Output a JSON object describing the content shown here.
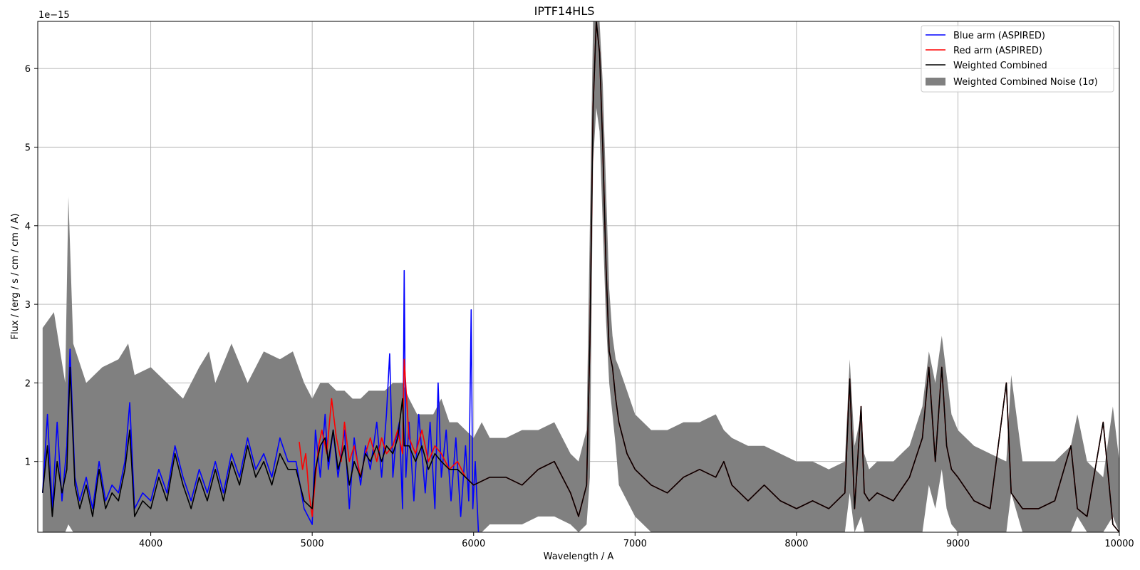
{
  "chart_data": {
    "type": "line",
    "title": "IPTF14HLS",
    "xlabel": "Wavelength / A",
    "ylabel": "Flux / (erg / s / cm / cm / A)",
    "y_offset_label": "1e−15",
    "xlim": [
      3300,
      10000
    ],
    "ylim": [
      0.1,
      6.6
    ],
    "y_scale_exponent": -15,
    "grid": true,
    "legend_position": "top-right",
    "x_ticks": [
      "4000",
      "5000",
      "6000",
      "7000",
      "8000",
      "9000",
      "10000"
    ],
    "y_ticks": [
      "1",
      "2",
      "3",
      "4",
      "5",
      "6"
    ],
    "x_tick_values": [
      4000,
      5000,
      6000,
      7000,
      8000,
      9000,
      10000
    ],
    "y_tick_values": [
      1,
      2,
      3,
      4,
      5,
      6
    ],
    "series": [
      {
        "name": "Weighted Combined Noise (1σ)",
        "kind": "band",
        "color": "#808080",
        "x": [
          3330,
          3400,
          3470,
          3490,
          3520,
          3600,
          3700,
          3800,
          3860,
          3900,
          4000,
          4100,
          4200,
          4300,
          4360,
          4400,
          4500,
          4600,
          4700,
          4800,
          4880,
          4950,
          5000,
          5050,
          5100,
          5150,
          5200,
          5250,
          5300,
          5350,
          5400,
          5450,
          5500,
          5560,
          5600,
          5650,
          5700,
          5750,
          5800,
          5850,
          5900,
          5950,
          6000,
          6050,
          6100,
          6200,
          6300,
          6400,
          6500,
          6600,
          6650,
          6700,
          6720,
          6740,
          6760,
          6780,
          6800,
          6820,
          6840,
          6860,
          6880,
          6900,
          6950,
          7000,
          7100,
          7200,
          7300,
          7400,
          7500,
          7550,
          7600,
          7700,
          7800,
          7900,
          8000,
          8100,
          8200,
          8300,
          8330,
          8360,
          8400,
          8420,
          8450,
          8500,
          8600,
          8700,
          8780,
          8820,
          8860,
          8900,
          8930,
          8960,
          9000,
          9100,
          9200,
          9300,
          9330,
          9400,
          9500,
          9600,
          9700,
          9740,
          9800,
          9900,
          9960,
          10000
        ],
        "upper": [
          2.7,
          2.9,
          2.0,
          4.37,
          2.5,
          2.0,
          2.2,
          2.3,
          2.5,
          2.1,
          2.2,
          2.0,
          1.8,
          2.2,
          2.4,
          2.0,
          2.5,
          2.0,
          2.4,
          2.3,
          2.4,
          2.0,
          1.8,
          2.0,
          2.0,
          1.9,
          1.9,
          1.8,
          1.8,
          1.9,
          1.9,
          1.9,
          2.0,
          2.0,
          1.8,
          1.6,
          1.6,
          1.6,
          1.8,
          1.5,
          1.5,
          1.4,
          1.3,
          1.5,
          1.3,
          1.3,
          1.4,
          1.4,
          1.5,
          1.1,
          1.0,
          1.4,
          4.0,
          6.6,
          6.6,
          6.6,
          5.8,
          4.5,
          3.2,
          2.6,
          2.3,
          2.2,
          1.9,
          1.6,
          1.4,
          1.4,
          1.5,
          1.5,
          1.6,
          1.4,
          1.3,
          1.2,
          1.2,
          1.1,
          1.0,
          1.0,
          0.9,
          1.0,
          2.3,
          1.2,
          1.6,
          1.1,
          0.9,
          1.0,
          1.0,
          1.2,
          1.7,
          2.4,
          2.0,
          2.6,
          2.1,
          1.6,
          1.4,
          1.2,
          1.1,
          1.0,
          2.1,
          1.0,
          1.0,
          1.0,
          1.2,
          1.6,
          1.0,
          0.8,
          1.7,
          1.0
        ],
        "lower": [
          0.1,
          0.1,
          0.1,
          0.2,
          0.1,
          0.1,
          0.1,
          0.1,
          0.1,
          0.1,
          0.1,
          0.1,
          0.1,
          0.1,
          0.1,
          0.1,
          0.1,
          0.1,
          0.1,
          0.1,
          0.1,
          0.1,
          0.1,
          0.1,
          0.1,
          0.1,
          0.1,
          0.1,
          0.1,
          0.1,
          0.1,
          0.1,
          0.1,
          0.1,
          0.1,
          0.1,
          0.1,
          0.1,
          0.1,
          0.1,
          0.1,
          0.1,
          0.1,
          0.1,
          0.2,
          0.2,
          0.2,
          0.3,
          0.3,
          0.2,
          0.1,
          0.2,
          0.8,
          4.8,
          5.5,
          5.2,
          4.0,
          2.8,
          2.0,
          1.6,
          1.2,
          0.7,
          0.5,
          0.3,
          0.1,
          0.1,
          0.1,
          0.1,
          0.1,
          0.1,
          0.1,
          0.1,
          0.1,
          0.1,
          0.1,
          0.1,
          0.1,
          0.1,
          0.6,
          0.1,
          0.3,
          0.1,
          0.1,
          0.1,
          0.1,
          0.1,
          0.1,
          0.7,
          0.4,
          0.9,
          0.4,
          0.2,
          0.1,
          0.1,
          0.1,
          0.1,
          0.6,
          0.1,
          0.1,
          0.1,
          0.1,
          0.3,
          0.1,
          0.1,
          0.3,
          0.1
        ]
      },
      {
        "name": "Blue arm (ASPIRED)",
        "kind": "line",
        "color": "#0000ff",
        "x": [
          3330,
          3360,
          3390,
          3420,
          3450,
          3480,
          3500,
          3530,
          3560,
          3600,
          3640,
          3680,
          3720,
          3760,
          3800,
          3840,
          3870,
          3900,
          3950,
          4000,
          4050,
          4100,
          4150,
          4200,
          4250,
          4300,
          4350,
          4400,
          4450,
          4500,
          4550,
          4600,
          4650,
          4700,
          4750,
          4800,
          4850,
          4900,
          4950,
          5000,
          5020,
          5050,
          5080,
          5100,
          5130,
          5160,
          5200,
          5230,
          5260,
          5300,
          5330,
          5360,
          5400,
          5430,
          5460,
          5480,
          5500,
          5520,
          5540,
          5560,
          5570,
          5580,
          5600,
          5630,
          5660,
          5700,
          5730,
          5760,
          5780,
          5800,
          5830,
          5860,
          5890,
          5920,
          5950,
          5970,
          5985,
          5995,
          6010,
          6030
        ],
        "y": [
          0.6,
          1.6,
          0.4,
          1.5,
          0.5,
          1.2,
          2.43,
          0.8,
          0.5,
          0.8,
          0.4,
          1.0,
          0.5,
          0.7,
          0.6,
          1.0,
          1.75,
          0.4,
          0.6,
          0.5,
          0.9,
          0.6,
          1.2,
          0.8,
          0.5,
          0.9,
          0.6,
          1.0,
          0.6,
          1.1,
          0.8,
          1.3,
          0.9,
          1.1,
          0.8,
          1.3,
          1.0,
          1.0,
          0.4,
          0.2,
          1.4,
          0.8,
          1.6,
          0.9,
          1.4,
          0.8,
          1.4,
          0.4,
          1.3,
          0.7,
          1.2,
          0.9,
          1.5,
          0.8,
          1.6,
          2.37,
          0.8,
          1.3,
          1.5,
          0.4,
          3.43,
          0.8,
          1.5,
          0.5,
          1.6,
          0.6,
          1.5,
          0.4,
          2.0,
          0.8,
          1.4,
          0.5,
          1.3,
          0.3,
          1.2,
          0.5,
          2.93,
          0.4,
          1.0,
          0.1
        ]
      },
      {
        "name": "Red arm (ASPIRED)",
        "kind": "line",
        "color": "#ff0000",
        "x": [
          4920,
          4940,
          4960,
          4980,
          5000,
          5020,
          5040,
          5060,
          5090,
          5120,
          5150,
          5180,
          5200,
          5230,
          5260,
          5300,
          5330,
          5360,
          5400,
          5430,
          5460,
          5500,
          5530,
          5560,
          5570,
          5600,
          5640,
          5680,
          5720,
          5760,
          5800,
          5850,
          5900,
          5950,
          6000,
          6100,
          6200,
          6300,
          6400,
          6500,
          6600,
          6650,
          6700,
          6720,
          6740,
          6760,
          6780,
          6800,
          6820,
          6840,
          6860,
          6880,
          6900,
          6950,
          7000,
          7100,
          7200,
          7300,
          7400,
          7500,
          7550,
          7600,
          7700,
          7800,
          7900,
          8000,
          8100,
          8200,
          8300,
          8330,
          8360,
          8400,
          8420,
          8450,
          8500,
          8600,
          8700,
          8780,
          8820,
          8860,
          8900,
          8930,
          8960,
          9000,
          9100,
          9200,
          9300,
          9330,
          9400,
          9500,
          9600,
          9700,
          9740,
          9800,
          9900,
          9960,
          10000
        ],
        "y": [
          1.25,
          0.9,
          1.1,
          0.6,
          0.3,
          0.8,
          1.2,
          1.4,
          1.1,
          1.8,
          1.3,
          1.0,
          1.5,
          1.0,
          1.2,
          0.8,
          1.1,
          1.3,
          1.0,
          1.3,
          1.1,
          1.2,
          1.4,
          1.1,
          2.3,
          1.3,
          1.1,
          1.4,
          1.0,
          1.2,
          1.1,
          0.9,
          1.0,
          0.8,
          0.7,
          0.8,
          0.8,
          0.7,
          0.9,
          1.0,
          0.6,
          0.3,
          0.7,
          2.5,
          5.5,
          6.6,
          6.2,
          5.0,
          3.5,
          2.4,
          2.2,
          1.8,
          1.5,
          1.1,
          0.9,
          0.7,
          0.6,
          0.8,
          0.9,
          0.8,
          1.0,
          0.7,
          0.5,
          0.7,
          0.5,
          0.4,
          0.5,
          0.4,
          0.6,
          2.05,
          0.4,
          1.7,
          0.6,
          0.5,
          0.6,
          0.5,
          0.8,
          1.3,
          2.2,
          1.0,
          2.2,
          1.2,
          0.9,
          0.8,
          0.5,
          0.4,
          2.0,
          0.6,
          0.4,
          0.4,
          0.5,
          1.2,
          0.4,
          0.3,
          1.5,
          0.2,
          0.1
        ]
      },
      {
        "name": "Weighted Combined",
        "kind": "line",
        "color": "#000000",
        "x": [
          3330,
          3360,
          3390,
          3420,
          3450,
          3480,
          3500,
          3530,
          3560,
          3600,
          3640,
          3680,
          3720,
          3760,
          3800,
          3840,
          3870,
          3900,
          3950,
          4000,
          4050,
          4100,
          4150,
          4200,
          4250,
          4300,
          4350,
          4400,
          4450,
          4500,
          4550,
          4600,
          4650,
          4700,
          4750,
          4800,
          4850,
          4900,
          4950,
          5000,
          5020,
          5050,
          5080,
          5100,
          5130,
          5160,
          5200,
          5230,
          5260,
          5300,
          5330,
          5360,
          5400,
          5430,
          5460,
          5500,
          5530,
          5560,
          5570,
          5600,
          5640,
          5680,
          5720,
          5760,
          5800,
          5850,
          5900,
          5950,
          6000,
          6100,
          6200,
          6300,
          6400,
          6500,
          6600,
          6650,
          6700,
          6720,
          6740,
          6760,
          6780,
          6800,
          6820,
          6840,
          6860,
          6880,
          6900,
          6950,
          7000,
          7100,
          7200,
          7300,
          7400,
          7500,
          7550,
          7600,
          7700,
          7800,
          7900,
          8000,
          8100,
          8200,
          8300,
          8330,
          8360,
          8400,
          8420,
          8450,
          8500,
          8600,
          8700,
          8780,
          8820,
          8860,
          8900,
          8930,
          8960,
          9000,
          9100,
          9200,
          9300,
          9330,
          9400,
          9500,
          9600,
          9700,
          9740,
          9800,
          9900,
          9960,
          10000
        ],
        "y": [
          0.6,
          1.2,
          0.3,
          1.0,
          0.6,
          0.9,
          2.2,
          0.7,
          0.4,
          0.7,
          0.3,
          0.9,
          0.4,
          0.6,
          0.5,
          0.9,
          1.4,
          0.3,
          0.5,
          0.4,
          0.8,
          0.5,
          1.1,
          0.7,
          0.4,
          0.8,
          0.5,
          0.9,
          0.5,
          1.0,
          0.7,
          1.2,
          0.8,
          1.0,
          0.7,
          1.1,
          0.9,
          0.9,
          0.5,
          0.4,
          0.9,
          1.2,
          1.3,
          1.0,
          1.4,
          0.9,
          1.2,
          0.7,
          1.0,
          0.8,
          1.1,
          1.0,
          1.2,
          1.0,
          1.2,
          1.1,
          1.3,
          1.8,
          1.2,
          1.2,
          1.0,
          1.2,
          0.9,
          1.1,
          1.0,
          0.9,
          0.9,
          0.8,
          0.7,
          0.8,
          0.8,
          0.7,
          0.9,
          1.0,
          0.6,
          0.3,
          0.7,
          2.5,
          5.5,
          6.6,
          6.2,
          5.0,
          3.5,
          2.4,
          2.2,
          1.8,
          1.5,
          1.1,
          0.9,
          0.7,
          0.6,
          0.8,
          0.9,
          0.8,
          1.0,
          0.7,
          0.5,
          0.7,
          0.5,
          0.4,
          0.5,
          0.4,
          0.6,
          2.05,
          0.4,
          1.7,
          0.6,
          0.5,
          0.6,
          0.5,
          0.8,
          1.3,
          2.2,
          1.0,
          2.2,
          1.2,
          0.9,
          0.8,
          0.5,
          0.4,
          2.0,
          0.6,
          0.4,
          0.4,
          0.5,
          1.2,
          0.4,
          0.3,
          1.5,
          0.2,
          0.1
        ]
      }
    ],
    "legend": [
      {
        "label": "Blue arm (ASPIRED)",
        "symbol": "line",
        "color": "#0000ff"
      },
      {
        "label": "Red arm (ASPIRED)",
        "symbol": "line",
        "color": "#ff0000"
      },
      {
        "label": "Weighted Combined",
        "symbol": "line",
        "color": "#000000"
      },
      {
        "label": "Weighted Combined Noise (1σ)",
        "symbol": "patch",
        "color": "#808080"
      }
    ]
  }
}
